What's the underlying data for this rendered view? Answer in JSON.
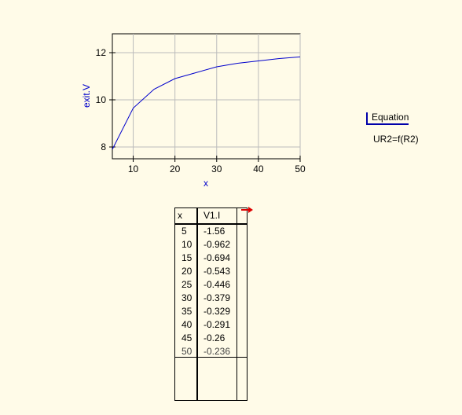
{
  "chart_data": {
    "type": "line",
    "xlabel": "x",
    "ylabel": "exit.V",
    "xlim": [
      5,
      50
    ],
    "ylim": [
      7.5,
      12.8
    ],
    "xticks": [
      10,
      20,
      30,
      40,
      50
    ],
    "yticks": [
      8,
      10,
      12
    ],
    "grid": true,
    "series": [
      {
        "color": "#0000cc",
        "x": [
          5,
          10,
          15,
          20,
          25,
          30,
          35,
          40,
          45,
          50
        ],
        "y": [
          7.9,
          9.65,
          10.45,
          10.9,
          11.15,
          11.4,
          11.55,
          11.65,
          11.75,
          11.82
        ]
      }
    ]
  },
  "colors": {
    "axis_label": "#0000cc",
    "line": "#0000cc",
    "grid": "#bbbbbb",
    "background": "#fffbe8",
    "arrow": "#dd0000",
    "equation_border": "#0000aa"
  },
  "equation": {
    "label": "Equation",
    "formula": "UR2=f(R2)"
  },
  "table": {
    "headers": [
      "x",
      "V1.I"
    ],
    "rows": [
      [
        "5",
        "-1.56"
      ],
      [
        "10",
        "-0.962"
      ],
      [
        "15",
        "-0.694"
      ],
      [
        "20",
        "-0.543"
      ],
      [
        "25",
        "-0.446"
      ],
      [
        "30",
        "-0.379"
      ],
      [
        "35",
        "-0.329"
      ],
      [
        "40",
        "-0.291"
      ],
      [
        "45",
        "-0.26"
      ],
      [
        "50",
        "-0.236"
      ]
    ]
  },
  "icons": {
    "table_arrow": "red-arrow-icon"
  }
}
